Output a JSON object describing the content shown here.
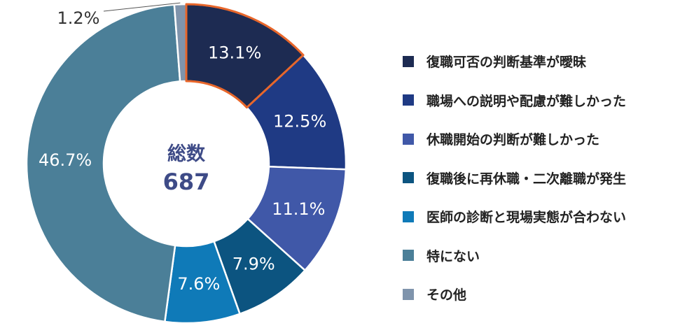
{
  "chart_data": {
    "type": "pie",
    "donut": true,
    "center_title": "総数",
    "center_value": "687",
    "categories": [
      "復職可否の判断基準が曖昧",
      "職場への説明や配慮が難しかった",
      "休職開始の判断が難しかった",
      "復職後に再休職・二次離職が発生",
      "医師の診断と現場実態が合わない",
      "特にない",
      "その他"
    ],
    "values": [
      13.1,
      12.5,
      11.1,
      7.9,
      7.6,
      46.7,
      1.2
    ],
    "value_labels": [
      "13.1%",
      "12.5%",
      "11.1%",
      "7.9%",
      "7.6%",
      "46.7%",
      "1.2%"
    ],
    "colors": [
      "#1d2b52",
      "#1f3a84",
      "#4058a8",
      "#0c5480",
      "#0f7ab8",
      "#4b7f98",
      "#7f94ac"
    ],
    "highlighted_category": "復職可否の判断基準が曖昧",
    "highlight_color": "#e8662a",
    "legend_position": "right"
  }
}
